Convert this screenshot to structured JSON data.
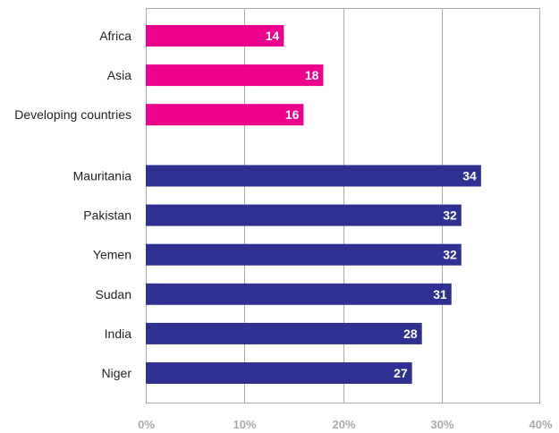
{
  "chart_data": {
    "type": "bar",
    "orientation": "horizontal",
    "title": "",
    "xlabel": "",
    "ylabel": "",
    "xlim": [
      0,
      40
    ],
    "x_ticks": [
      "0%",
      "10%",
      "20%",
      "30%",
      "40%"
    ],
    "grid": true,
    "groups": [
      {
        "color": "#ec008c",
        "categories": [
          "Africa",
          "Asia",
          "Developing countries"
        ],
        "values": [
          14,
          18,
          16
        ]
      },
      {
        "color": "#2e3192",
        "categories": [
          "Mauritania",
          "Pakistan",
          "Yemen",
          "Sudan",
          "India",
          "Niger"
        ],
        "values": [
          34,
          32,
          32,
          31,
          28,
          27
        ]
      }
    ]
  }
}
